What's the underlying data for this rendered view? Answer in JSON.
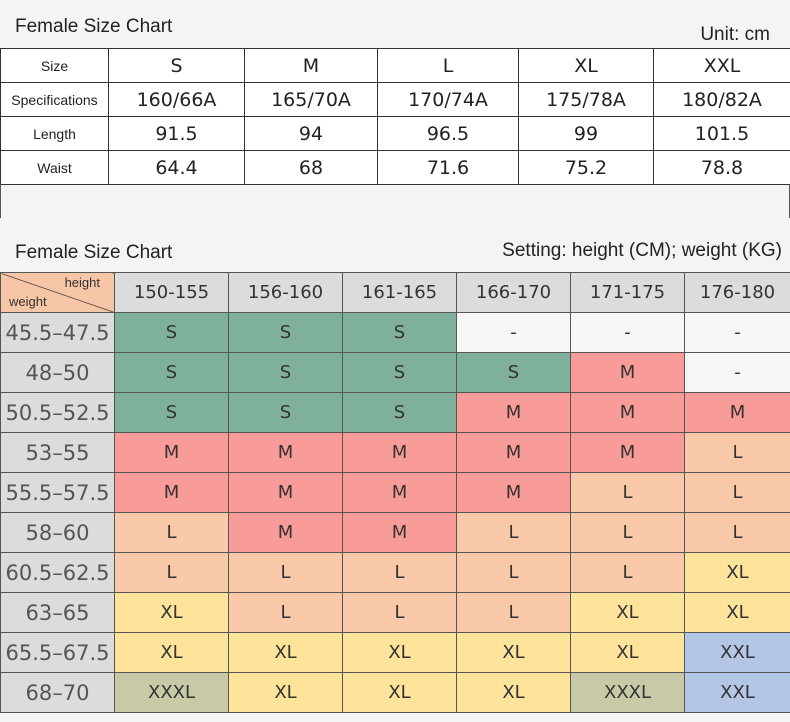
{
  "top": {
    "title": "Female Size Chart",
    "unit": "Unit: cm",
    "header": [
      "Size",
      "S",
      "M",
      "L",
      "XL",
      "XXL"
    ],
    "rows": [
      [
        "Specifications",
        "160/66A",
        "165/70A",
        "170/74A",
        "175/78A",
        "180/82A"
      ],
      [
        "Length",
        "91.5",
        "94",
        "96.5",
        "99",
        "101.5"
      ],
      [
        "Waist",
        "64.4",
        "68",
        "71.6",
        "75.2",
        "78.8"
      ]
    ]
  },
  "bottom": {
    "title": "Female Size Chart",
    "setting": "Setting: height (CM); weight (KG)",
    "corner_height": "height",
    "corner_weight": "weight",
    "heights": [
      "150-155",
      "156-160",
      "161-165",
      "166-170",
      "171-175",
      "176-180"
    ],
    "rows": [
      {
        "weight": "45.5–47.5",
        "sizes": [
          "S",
          "S",
          "S",
          "-",
          "-",
          "-"
        ]
      },
      {
        "weight": "48–50",
        "sizes": [
          "S",
          "S",
          "S",
          "S",
          "M",
          "-"
        ]
      },
      {
        "weight": "50.5–52.5",
        "sizes": [
          "S",
          "S",
          "S",
          "M",
          "M",
          "M"
        ]
      },
      {
        "weight": "53–55",
        "sizes": [
          "M",
          "M",
          "M",
          "M",
          "M",
          "L"
        ]
      },
      {
        "weight": "55.5–57.5",
        "sizes": [
          "M",
          "M",
          "M",
          "M",
          "L",
          "L"
        ]
      },
      {
        "weight": "58–60",
        "sizes": [
          "L",
          "M",
          "M",
          "L",
          "L",
          "L"
        ]
      },
      {
        "weight": "60.5–62.5",
        "sizes": [
          "L",
          "L",
          "L",
          "L",
          "L",
          "XL"
        ]
      },
      {
        "weight": "63–65",
        "sizes": [
          "XL",
          "L",
          "L",
          "L",
          "XL",
          "XL"
        ]
      },
      {
        "weight": "65.5–67.5",
        "sizes": [
          "XL",
          "XL",
          "XL",
          "XL",
          "XL",
          "XXL"
        ]
      },
      {
        "weight": "68–70",
        "sizes": [
          "XXXL",
          "XL",
          "XL",
          "XL",
          "XXXL",
          "XXL"
        ]
      }
    ]
  },
  "size_colors": {
    "S": "#7fb09b",
    "M": "#f99b98",
    "L": "#f9c9aa",
    "XL": "#fde49a",
    "XXL": "#b4c6e6",
    "XXXL": "#c8c9a7",
    "-": "#f6f6f6"
  }
}
